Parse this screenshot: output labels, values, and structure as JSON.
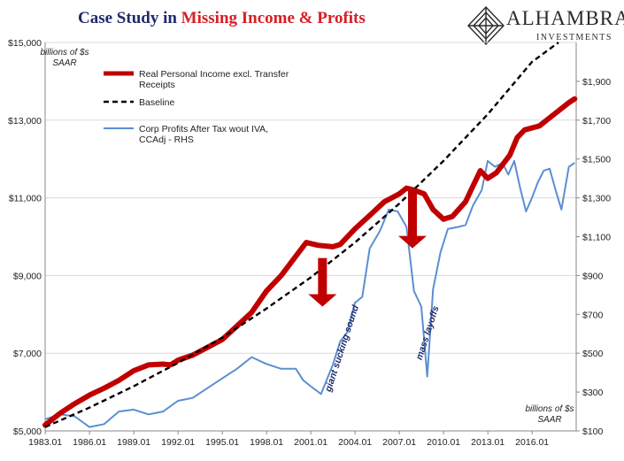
{
  "title": {
    "part1": "Case Study in ",
    "part2": "Missing Income & Profits"
  },
  "brand": {
    "name": "ALHAMBRA",
    "sub": "INVESTMENTS"
  },
  "colors": {
    "income": "#c00000",
    "baseline": "#000000",
    "profits": "#5b8fd1",
    "arrow": "#c00000",
    "title_navy": "#1f2a6b",
    "title_red": "#d61f26"
  },
  "chart_data": {
    "type": "line",
    "x_tick_labels": [
      "1983.01",
      "1986.01",
      "1989.01",
      "1992.01",
      "1995.01",
      "1998.01",
      "2001.01",
      "2004.01",
      "2007.01",
      "2010.01",
      "2013.01",
      "2016.01"
    ],
    "xlim": [
      1983.0,
      2019.0
    ],
    "y_left": {
      "ticks": [
        "$5,000",
        "$7,000",
        "$9,000",
        "$11,000",
        "$13,000",
        "$15,000"
      ],
      "tick_values": [
        5000,
        7000,
        9000,
        11000,
        13000,
        15000
      ],
      "ylim": [
        5000,
        15000
      ],
      "unit_label": [
        "billions of $s",
        "SAAR"
      ]
    },
    "y_right": {
      "ticks": [
        "$100",
        "$300",
        "$500",
        "$700",
        "$900",
        "$1,100",
        "$1,300",
        "$1,500",
        "$1,700",
        "$1,900"
      ],
      "tick_values": [
        100,
        300,
        500,
        700,
        900,
        1100,
        1300,
        1500,
        1700,
        1900
      ],
      "ylim": [
        100,
        2100
      ],
      "unit_label": [
        "billions of $s",
        "SAAR"
      ]
    },
    "legend": [
      "Real Personal Income excl. Transfer Receipts",
      "Baseline",
      "Corp Profits After Tax wout IVA, CCAdj - RHS"
    ],
    "series": [
      {
        "name": "Real Personal Income excl. Transfer Receipts",
        "axis": "left",
        "style": "thick",
        "points": [
          [
            1983.0,
            5150
          ],
          [
            1984.0,
            5450
          ],
          [
            1985.0,
            5700
          ],
          [
            1986.0,
            5920
          ],
          [
            1987.0,
            6100
          ],
          [
            1988.0,
            6300
          ],
          [
            1989.0,
            6550
          ],
          [
            1990.0,
            6700
          ],
          [
            1991.0,
            6720
          ],
          [
            1991.5,
            6700
          ],
          [
            1992.0,
            6820
          ],
          [
            1993.0,
            6950
          ],
          [
            1994.0,
            7150
          ],
          [
            1995.0,
            7350
          ],
          [
            1996.0,
            7700
          ],
          [
            1997.0,
            8050
          ],
          [
            1998.0,
            8600
          ],
          [
            1999.0,
            9000
          ],
          [
            2000.0,
            9500
          ],
          [
            2000.7,
            9850
          ],
          [
            2001.5,
            9780
          ],
          [
            2002.5,
            9740
          ],
          [
            2003.0,
            9800
          ],
          [
            2004.0,
            10200
          ],
          [
            2005.0,
            10550
          ],
          [
            2006.0,
            10900
          ],
          [
            2007.0,
            11100
          ],
          [
            2007.5,
            11250
          ],
          [
            2008.0,
            11200
          ],
          [
            2008.7,
            11100
          ],
          [
            2009.3,
            10700
          ],
          [
            2010.0,
            10450
          ],
          [
            2010.6,
            10520
          ],
          [
            2011.5,
            10900
          ],
          [
            2012.0,
            11300
          ],
          [
            2012.5,
            11700
          ],
          [
            2013.0,
            11500
          ],
          [
            2013.6,
            11650
          ],
          [
            2014.5,
            12100
          ],
          [
            2015.0,
            12550
          ],
          [
            2015.5,
            12750
          ],
          [
            2016.5,
            12850
          ],
          [
            2017.5,
            13150
          ],
          [
            2018.5,
            13450
          ],
          [
            2018.9,
            13550
          ]
        ]
      },
      {
        "name": "Baseline",
        "axis": "left",
        "style": "dashed",
        "points": [
          [
            1983.0,
            5100
          ],
          [
            1986.0,
            5600
          ],
          [
            1989.0,
            6150
          ],
          [
            1992.0,
            6750
          ],
          [
            1995.0,
            7400
          ],
          [
            1998.0,
            8150
          ],
          [
            2001.0,
            8950
          ],
          [
            2004.0,
            9850
          ],
          [
            2007.0,
            10850
          ],
          [
            2010.0,
            11950
          ],
          [
            2013.0,
            13150
          ],
          [
            2016.0,
            14500
          ],
          [
            2017.8,
            15000
          ]
        ]
      },
      {
        "name": "Corp Profits After Tax wout IVA, CCAdj - RHS",
        "axis": "right",
        "style": "thin",
        "points": [
          [
            1983.0,
            160
          ],
          [
            1984.0,
            185
          ],
          [
            1985.0,
            175
          ],
          [
            1986.0,
            120
          ],
          [
            1987.0,
            135
          ],
          [
            1988.0,
            200
          ],
          [
            1989.0,
            210
          ],
          [
            1990.0,
            185
          ],
          [
            1991.0,
            200
          ],
          [
            1992.0,
            255
          ],
          [
            1993.0,
            270
          ],
          [
            1994.0,
            320
          ],
          [
            1995.0,
            370
          ],
          [
            1996.0,
            420
          ],
          [
            1997.0,
            480
          ],
          [
            1998.0,
            445
          ],
          [
            1999.0,
            420
          ],
          [
            2000.0,
            420
          ],
          [
            2000.5,
            360
          ],
          [
            2001.0,
            330
          ],
          [
            2001.7,
            290
          ],
          [
            2002.5,
            440
          ],
          [
            2003.0,
            560
          ],
          [
            2003.5,
            610
          ],
          [
            2004.0,
            760
          ],
          [
            2004.5,
            790
          ],
          [
            2005.0,
            1040
          ],
          [
            2005.7,
            1130
          ],
          [
            2006.3,
            1240
          ],
          [
            2006.9,
            1230
          ],
          [
            2007.5,
            1150
          ],
          [
            2008.0,
            820
          ],
          [
            2008.5,
            740
          ],
          [
            2008.9,
            380
          ],
          [
            2009.3,
            830
          ],
          [
            2009.8,
            1020
          ],
          [
            2010.3,
            1140
          ],
          [
            2011.0,
            1150
          ],
          [
            2011.5,
            1160
          ],
          [
            2012.0,
            1260
          ],
          [
            2012.6,
            1340
          ],
          [
            2013.0,
            1490
          ],
          [
            2013.5,
            1460
          ],
          [
            2014.0,
            1480
          ],
          [
            2014.4,
            1420
          ],
          [
            2014.8,
            1490
          ],
          [
            2015.2,
            1350
          ],
          [
            2015.6,
            1230
          ],
          [
            2016.0,
            1300
          ],
          [
            2016.4,
            1380
          ],
          [
            2016.8,
            1440
          ],
          [
            2017.2,
            1450
          ],
          [
            2017.6,
            1340
          ],
          [
            2018.0,
            1240
          ],
          [
            2018.5,
            1460
          ],
          [
            2018.9,
            1480
          ]
        ]
      }
    ],
    "annotations": [
      {
        "text": "giant sucking sound",
        "x": 2003.3,
        "y_left": 7100
      },
      {
        "text": "mass layoffs",
        "x": 2009.1,
        "y_left": 7500
      }
    ],
    "arrows": [
      {
        "x": 2001.8,
        "y_from": 9450,
        "y_to": 8200
      },
      {
        "x": 2007.9,
        "y_from": 11250,
        "y_to": 9700
      }
    ],
    "grid": "horizontal"
  }
}
